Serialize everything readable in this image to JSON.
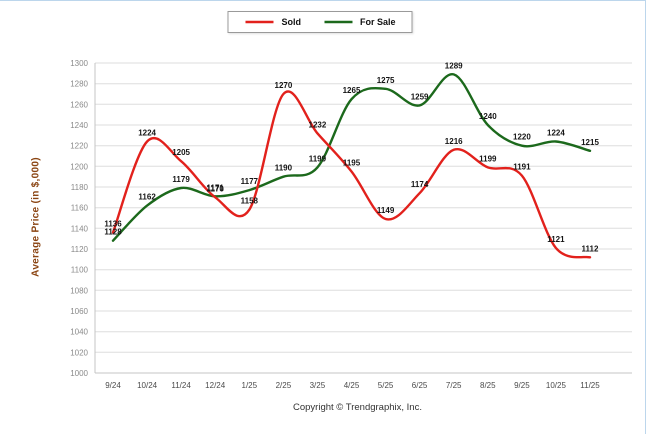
{
  "chart_data": {
    "type": "line",
    "categories": [
      "9/24",
      "10/24",
      "11/24",
      "12/24",
      "1/25",
      "2/25",
      "3/25",
      "4/25",
      "5/25",
      "6/25",
      "7/25",
      "8/25",
      "9/25",
      "10/25",
      "11/25"
    ],
    "series": [
      {
        "name": "Sold",
        "color": "#e2211c",
        "values": [
          1136,
          1224,
          1205,
          1170,
          1158,
          1270,
          1232,
          1195,
          1149,
          1174,
          1216,
          1199,
          1191,
          1121,
          1112
        ]
      },
      {
        "name": "For Sale",
        "color": "#1c691c",
        "values": [
          1128,
          1162,
          1179,
          1171,
          1177,
          1190,
          1199,
          1265,
          1275,
          1259,
          1289,
          1240,
          1220,
          1224,
          1215
        ]
      }
    ],
    "title": "",
    "xlabel": "",
    "ylabel": "Average Price (in $,000)",
    "ylim": [
      1000,
      1300
    ],
    "ytick_step": 20,
    "grid": true,
    "legend_position": "top-center"
  },
  "footer": {
    "copyright": "Copyright © Trendgraphix, Inc."
  },
  "colors": {
    "ylabel_color": "#8b4513",
    "grid_line": "#dedede",
    "axis_line": "#c4c4c4",
    "y_tick_label": "#8a8a8a",
    "x_tick_label": "#4a4a4a",
    "point_label": "#141414",
    "border_accent": "#bcd6ec"
  }
}
